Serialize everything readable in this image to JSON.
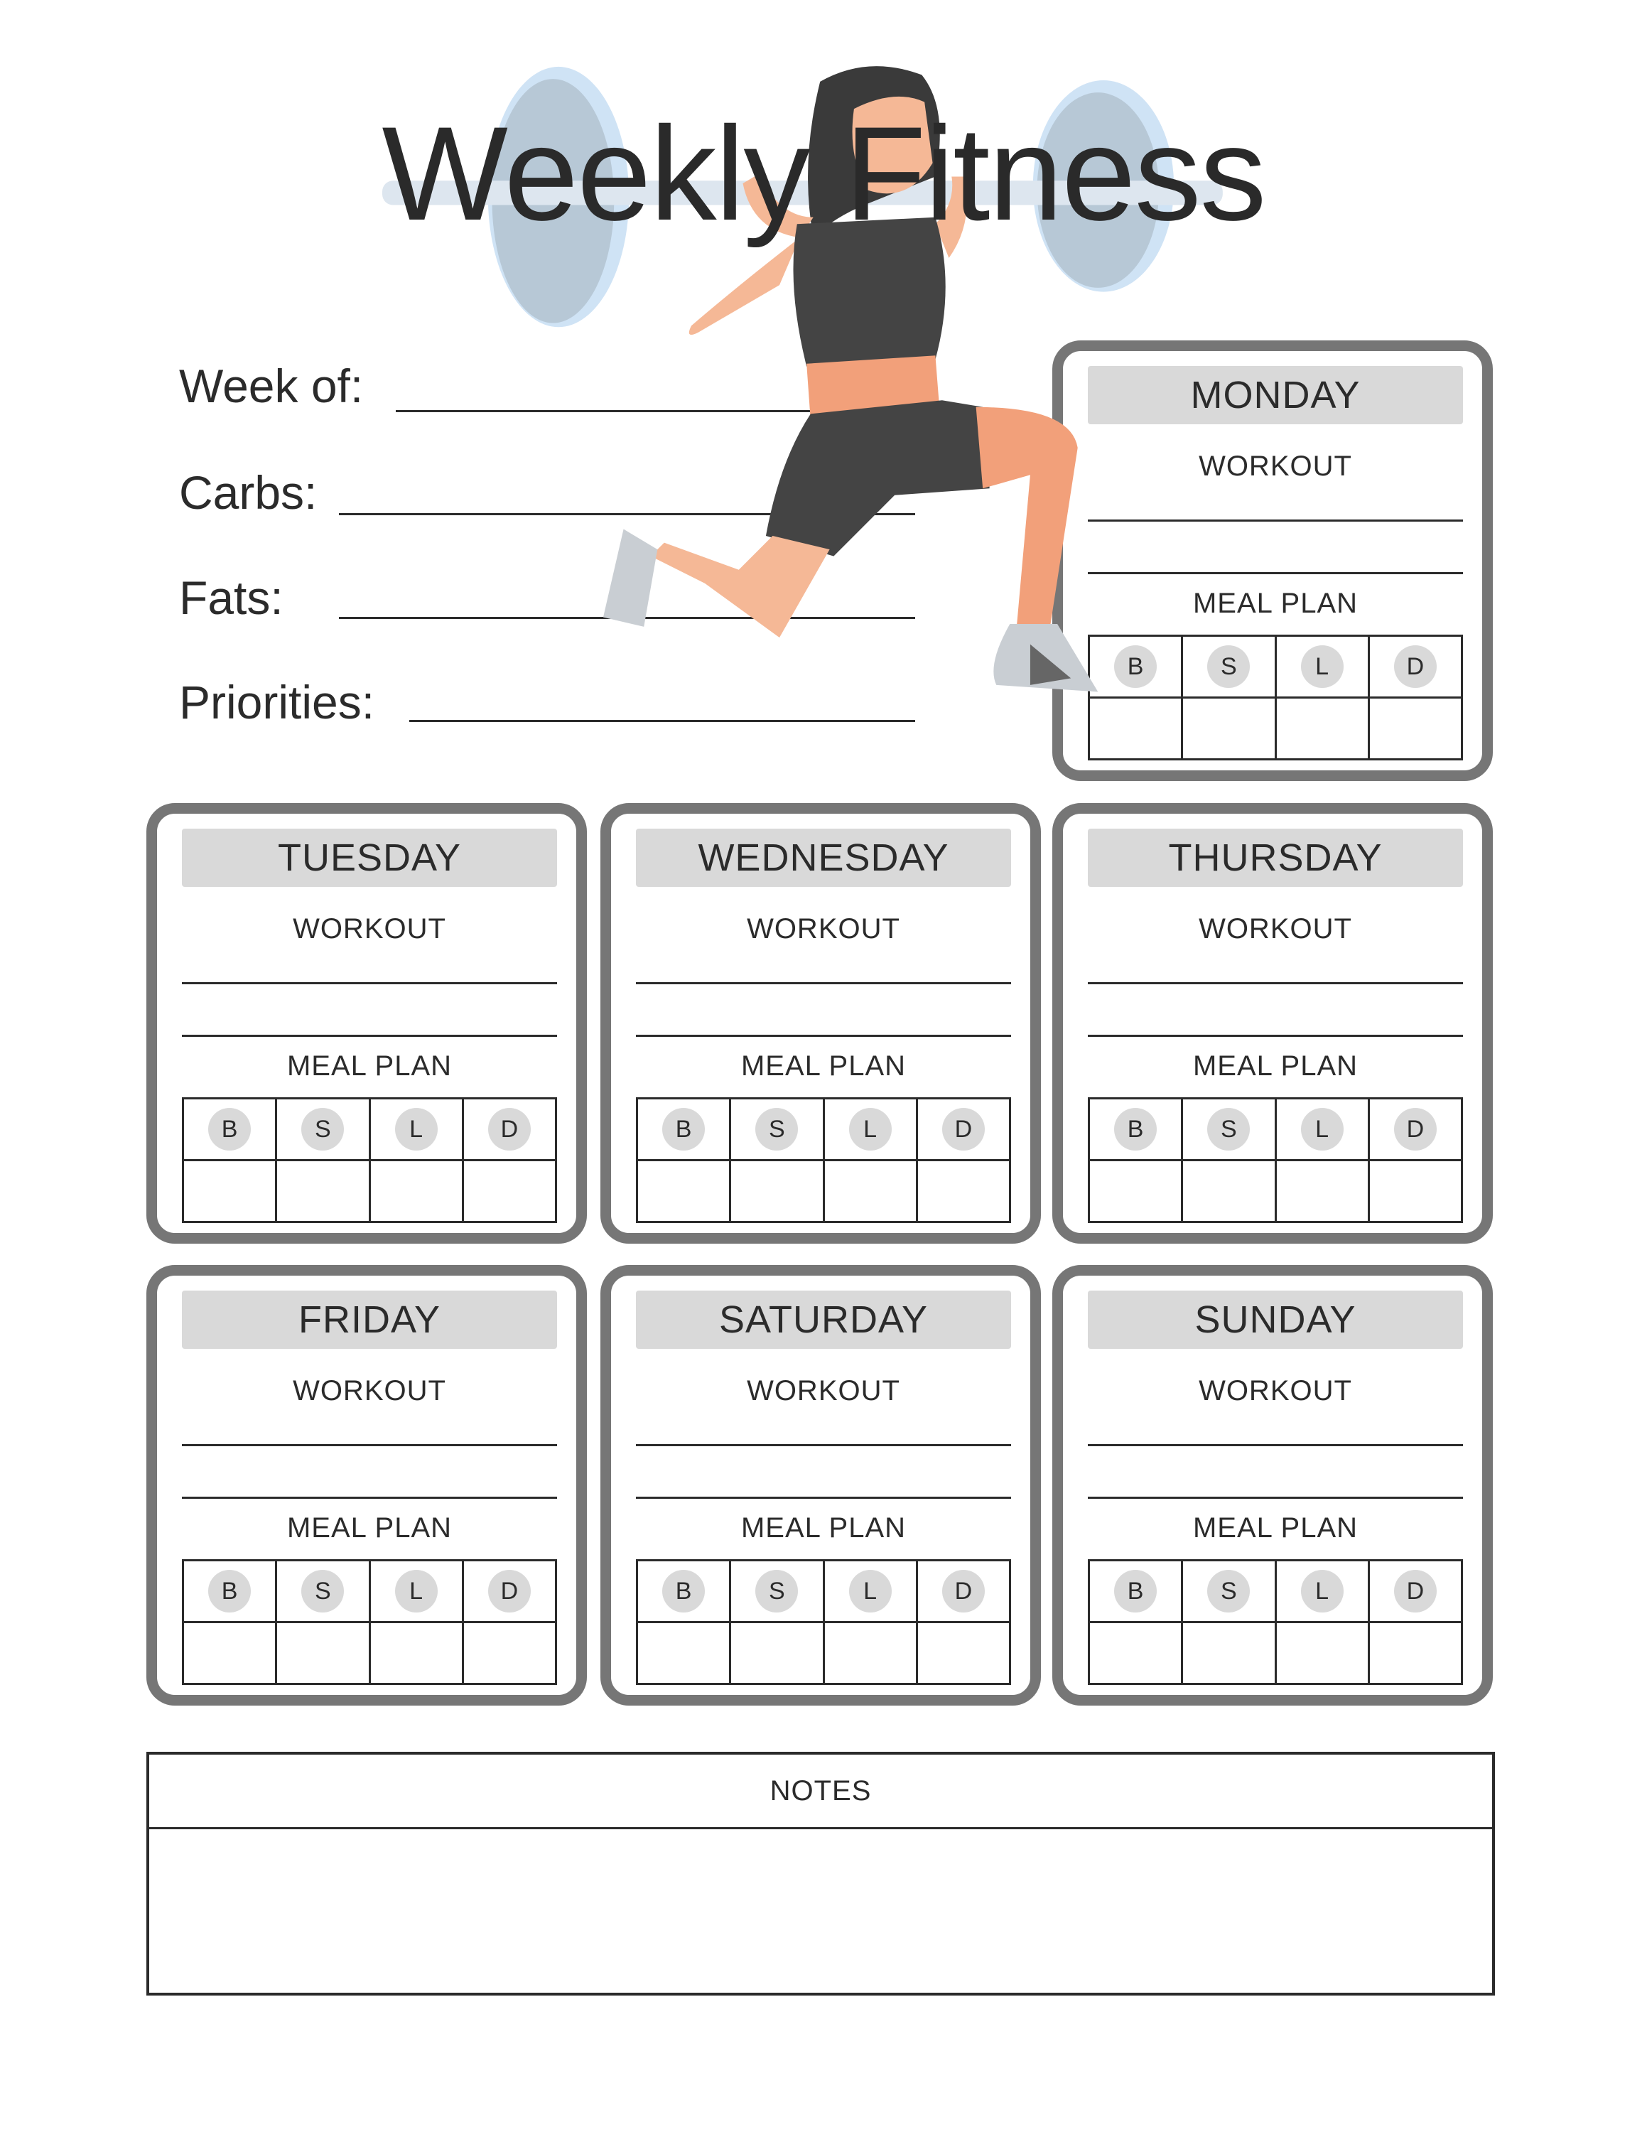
{
  "title": "Weekly Fitness",
  "fields": [
    {
      "label": "Week of:"
    },
    {
      "label": "Carbs:"
    },
    {
      "label": "Fats:"
    },
    {
      "label": "Priorities:"
    }
  ],
  "card_labels": {
    "workout": "WORKOUT",
    "meal_plan": "MEAL PLAN",
    "meals": [
      "B",
      "S",
      "L",
      "D"
    ]
  },
  "days": [
    {
      "name": "MONDAY"
    },
    {
      "name": "TUESDAY"
    },
    {
      "name": "WEDNESDAY"
    },
    {
      "name": "THURSDAY"
    },
    {
      "name": "FRIDAY"
    },
    {
      "name": "SATURDAY"
    },
    {
      "name": "SUNDAY"
    }
  ],
  "notes": {
    "label": "NOTES"
  },
  "colors": {
    "card_border": "#767676",
    "header_fill": "#d9d9d9",
    "text": "#2b2b2b",
    "skin": "#f2a07a",
    "outfit": "#444444",
    "plate": "#b7c8d6"
  }
}
